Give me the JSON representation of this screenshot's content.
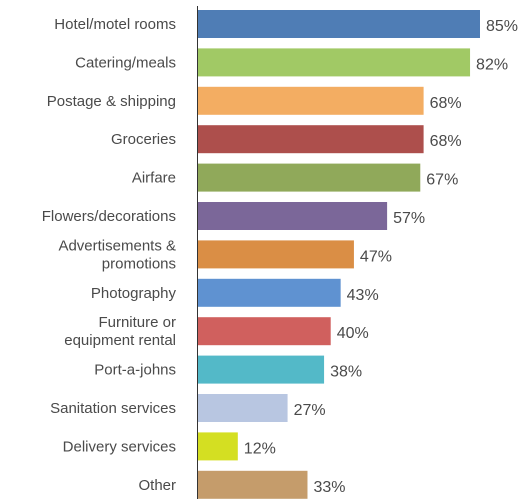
{
  "chart_data": {
    "type": "bar",
    "orientation": "horizontal",
    "categories": [
      "Hotel/motel rooms",
      "Catering/meals",
      "Postage & shipping",
      "Groceries",
      "Airfare",
      "Flowers/decorations",
      "Advertisements & promotions",
      "Photography",
      "Furniture or equipment rental",
      "Port-a-johns",
      "Sanitation services",
      "Delivery services",
      "Other"
    ],
    "category_lines": [
      [
        "Hotel/motel rooms"
      ],
      [
        "Catering/meals"
      ],
      [
        "Postage & shipping"
      ],
      [
        "Groceries"
      ],
      [
        "Airfare"
      ],
      [
        "Flowers/decorations"
      ],
      [
        "Advertisements &",
        "promotions"
      ],
      [
        "Photography"
      ],
      [
        "Furniture or",
        "equipment rental"
      ],
      [
        "Port-a-johns"
      ],
      [
        "Sanitation services"
      ],
      [
        "Delivery services"
      ],
      [
        "Other"
      ]
    ],
    "values": [
      85,
      82,
      68,
      68,
      67,
      57,
      47,
      43,
      40,
      38,
      27,
      12,
      33
    ],
    "value_labels": [
      "85%",
      "82%",
      "68%",
      "68%",
      "67%",
      "57%",
      "47%",
      "43%",
      "40%",
      "38%",
      "27%",
      "12%",
      "33%"
    ],
    "colors": [
      "#4f7db5",
      "#a1c965",
      "#f3ad62",
      "#ad4f4c",
      "#90a95a",
      "#7b6799",
      "#da8e45",
      "#5f92d1",
      "#d0605e",
      "#53b9c8",
      "#b8c6e1",
      "#d4df22",
      "#c59c6b"
    ],
    "xlim": [
      0,
      100
    ],
    "title": "",
    "xlabel": "",
    "ylabel": "",
    "grid": false,
    "legend": "none"
  }
}
